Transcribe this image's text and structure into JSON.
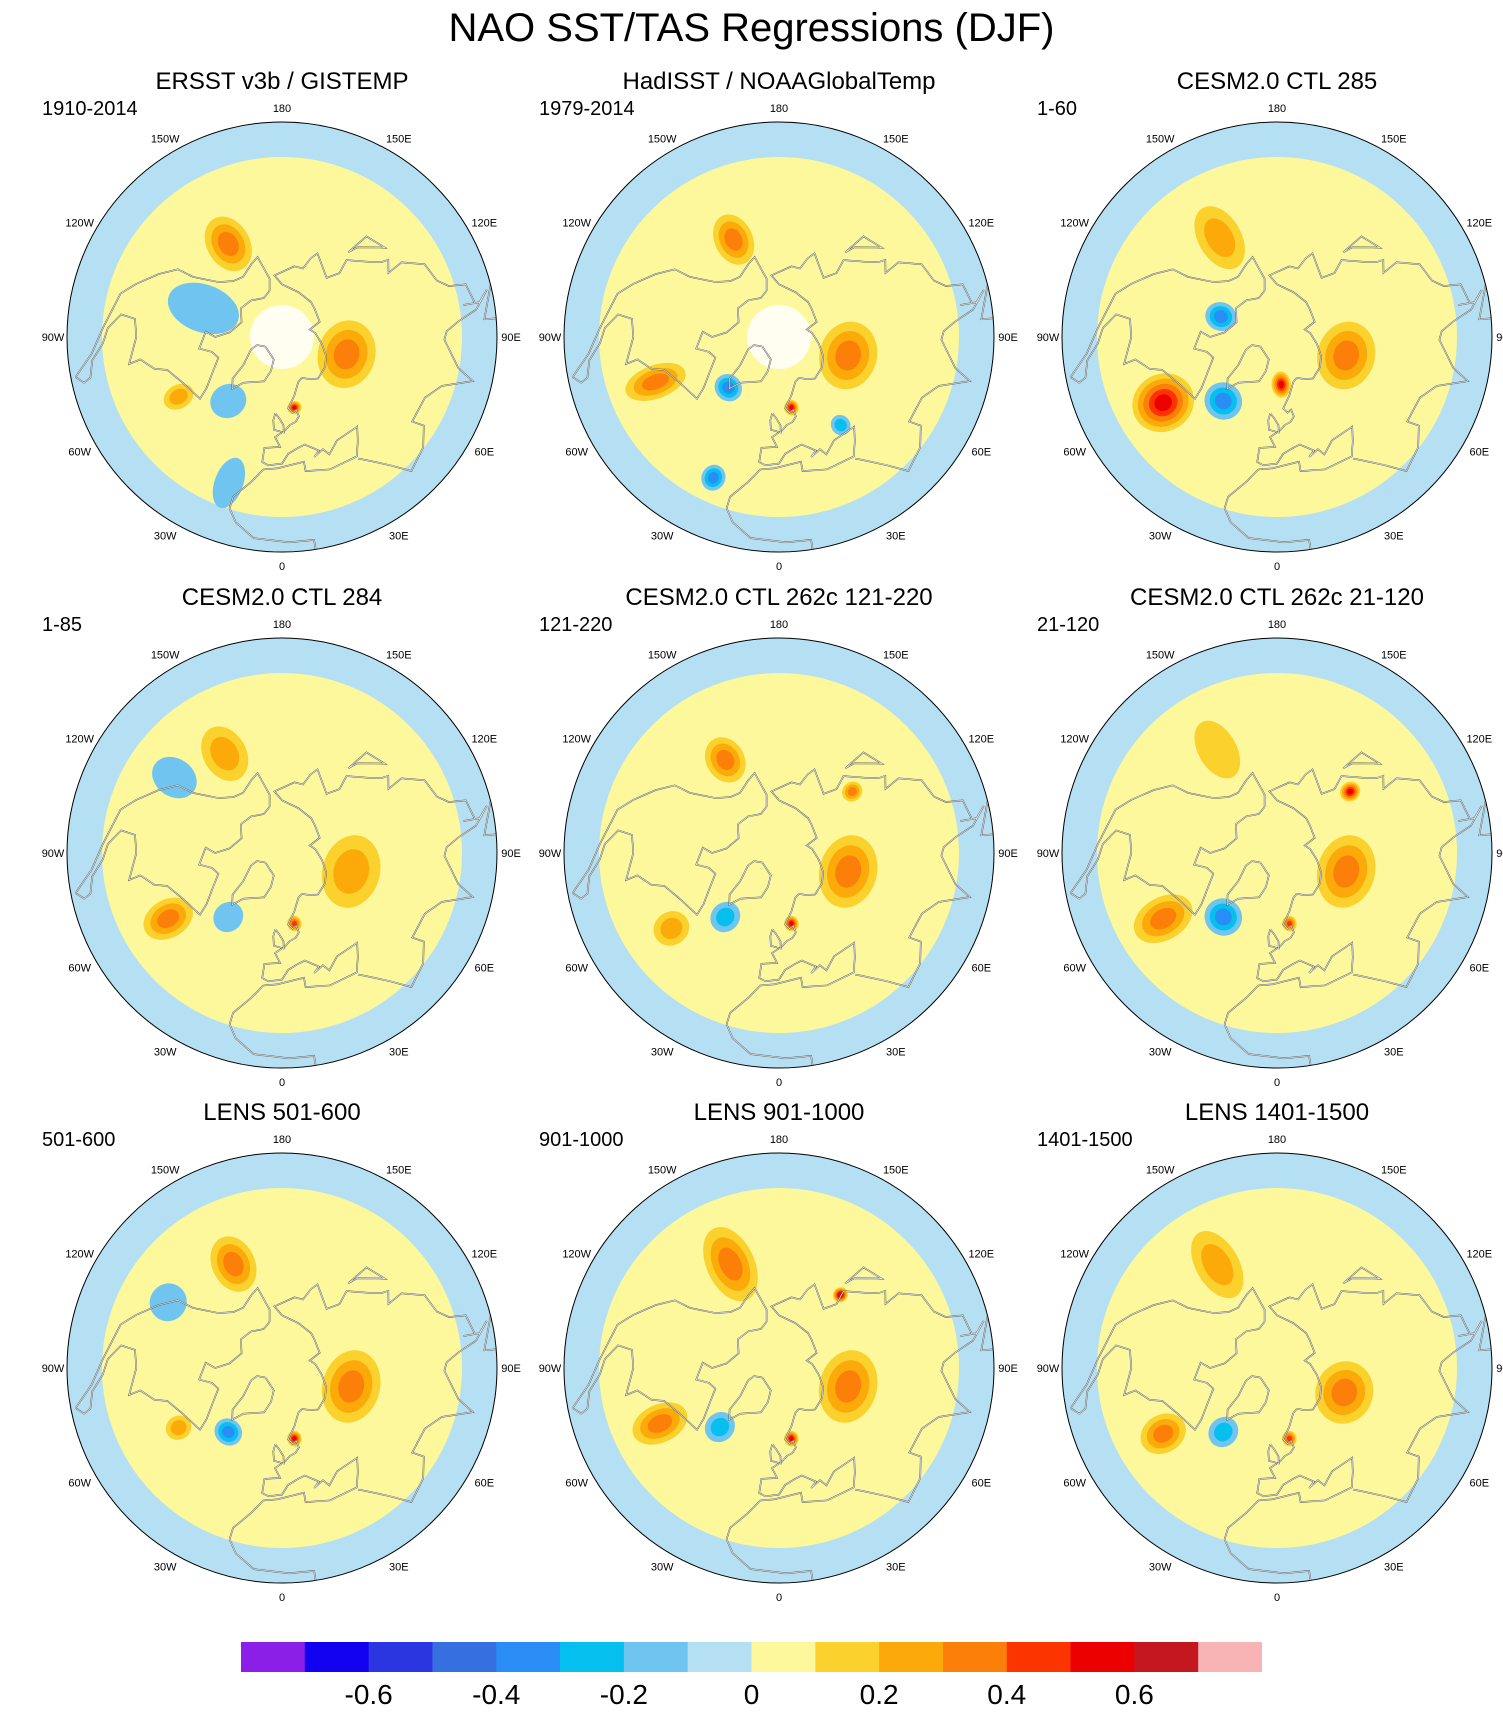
{
  "title": "NAO SST/TAS Regressions (DJF)",
  "longitude_labels": [
    "180",
    "150E",
    "120E",
    "90E",
    "60E",
    "30E",
    "0",
    "30W",
    "60W",
    "90W",
    "120W",
    "150W"
  ],
  "panels": [
    {
      "title": "ERSST v3b / GISTEMP",
      "period": "1910-2014",
      "partial_coverage": true,
      "blobs": [
        {
          "lat": 45,
          "lon": -150,
          "a": 22,
          "b": 9,
          "rot": 0,
          "v": 0.3
        },
        {
          "lat": 62,
          "lon": 75,
          "a": 26,
          "b": 12,
          "rot": 90,
          "v": 0.25
        },
        {
          "lat": 55,
          "lon": -40,
          "a": 14,
          "b": 7,
          "rot": 20,
          "v": -0.15
        },
        {
          "lat": 40,
          "lon": -60,
          "a": 12,
          "b": 5,
          "rot": 0,
          "v": 0.2
        },
        {
          "lat": 60,
          "lon": 10,
          "a": 5,
          "b": 3,
          "rot": 0,
          "v": 0.45
        },
        {
          "lat": 25,
          "lon": -20,
          "a": 20,
          "b": 6,
          "rot": 0,
          "v": -0.12
        },
        {
          "lat": 55,
          "lon": -110,
          "a": 28,
          "b": 10,
          "rot": 0,
          "v": -0.1
        }
      ]
    },
    {
      "title": "HadISST / NOAAGlobalTemp",
      "period": "1979-2014",
      "partial_coverage": true,
      "blobs": [
        {
          "lat": 45,
          "lon": -155,
          "a": 20,
          "b": 8,
          "rot": 0,
          "v": 0.3
        },
        {
          "lat": 60,
          "lon": 75,
          "a": 26,
          "b": 12,
          "rot": 90,
          "v": 0.3
        },
        {
          "lat": 35,
          "lon": -70,
          "a": 24,
          "b": 7,
          "rot": 0,
          "v": 0.3
        },
        {
          "lat": 60,
          "lon": -45,
          "a": 10,
          "b": 6,
          "rot": 0,
          "v": -0.25
        },
        {
          "lat": 60,
          "lon": 10,
          "a": 6,
          "b": 3,
          "rot": 0,
          "v": 0.5
        },
        {
          "lat": 25,
          "lon": -25,
          "a": 10,
          "b": 5,
          "rot": 0,
          "v": -0.3
        },
        {
          "lat": 45,
          "lon": 35,
          "a": 8,
          "b": 4,
          "rot": 0,
          "v": -0.2
        }
      ]
    },
    {
      "title": "CESM2.0 CTL 285",
      "period": "1-60",
      "partial_coverage": false,
      "blobs": [
        {
          "lat": 42,
          "lon": -150,
          "a": 26,
          "b": 9,
          "rot": 0,
          "v": 0.2
        },
        {
          "lat": 60,
          "lon": 75,
          "a": 26,
          "b": 12,
          "rot": 90,
          "v": 0.3
        },
        {
          "lat": 35,
          "lon": -60,
          "a": 24,
          "b": 12,
          "rot": 0,
          "v": 0.45
        },
        {
          "lat": 55,
          "lon": -40,
          "a": 14,
          "b": 8,
          "rot": 0,
          "v": -0.35
        },
        {
          "lat": 70,
          "lon": 5,
          "a": 10,
          "b": 4,
          "rot": 0,
          "v": 0.45
        },
        {
          "lat": 65,
          "lon": -110,
          "a": 12,
          "b": 6,
          "rot": 0,
          "v": -0.25
        }
      ]
    },
    {
      "title": "CESM2.0 CTL 284",
      "period": "1-85",
      "partial_coverage": false,
      "blobs": [
        {
          "lat": 42,
          "lon": -150,
          "a": 22,
          "b": 9,
          "rot": 0,
          "v": 0.2
        },
        {
          "lat": 60,
          "lon": 75,
          "a": 28,
          "b": 12,
          "rot": 90,
          "v": 0.22
        },
        {
          "lat": 35,
          "lon": -60,
          "a": 20,
          "b": 8,
          "rot": 0,
          "v": 0.28
        },
        {
          "lat": 55,
          "lon": -40,
          "a": 12,
          "b": 6,
          "rot": 0,
          "v": -0.15
        },
        {
          "lat": 60,
          "lon": 10,
          "a": 6,
          "b": 3,
          "rot": 0,
          "v": 0.4
        },
        {
          "lat": 35,
          "lon": -125,
          "a": 18,
          "b": 8,
          "rot": 0,
          "v": -0.15
        }
      ]
    },
    {
      "title": "CESM2.0 CTL 262c 121-220",
      "period": "121-220",
      "partial_coverage": false,
      "blobs": [
        {
          "lat": 45,
          "lon": -150,
          "a": 18,
          "b": 8,
          "rot": 0,
          "v": 0.25
        },
        {
          "lat": 60,
          "lon": 75,
          "a": 28,
          "b": 12,
          "rot": 90,
          "v": 0.25
        },
        {
          "lat": 35,
          "lon": -55,
          "a": 14,
          "b": 7,
          "rot": 0,
          "v": 0.2
        },
        {
          "lat": 55,
          "lon": -40,
          "a": 12,
          "b": 6,
          "rot": 0,
          "v": -0.18
        },
        {
          "lat": 60,
          "lon": 10,
          "a": 6,
          "b": 3,
          "rot": 0,
          "v": 0.45
        },
        {
          "lat": 50,
          "lon": 130,
          "a": 8,
          "b": 4,
          "rot": 0,
          "v": 0.35
        }
      ]
    },
    {
      "title": "CESM2.0 CTL 262c 21-120",
      "period": "21-120",
      "partial_coverage": false,
      "blobs": [
        {
          "lat": 40,
          "lon": -150,
          "a": 24,
          "b": 8,
          "rot": 0,
          "v": 0.15
        },
        {
          "lat": 60,
          "lon": 75,
          "a": 28,
          "b": 12,
          "rot": 90,
          "v": 0.25
        },
        {
          "lat": 35,
          "lon": -60,
          "a": 24,
          "b": 9,
          "rot": 0,
          "v": 0.3
        },
        {
          "lat": 55,
          "lon": -40,
          "a": 14,
          "b": 8,
          "rot": 0,
          "v": -0.3
        },
        {
          "lat": 60,
          "lon": 10,
          "a": 6,
          "b": 3,
          "rot": 0,
          "v": 0.4
        },
        {
          "lat": 50,
          "lon": 130,
          "a": 8,
          "b": 4,
          "rot": 0,
          "v": 0.45
        }
      ]
    },
    {
      "title": "LENS 501-600",
      "period": "501-600",
      "partial_coverage": false,
      "blobs": [
        {
          "lat": 42,
          "lon": -155,
          "a": 22,
          "b": 9,
          "rot": 0,
          "v": 0.25
        },
        {
          "lat": 60,
          "lon": 75,
          "a": 28,
          "b": 12,
          "rot": 90,
          "v": 0.25
        },
        {
          "lat": 40,
          "lon": -60,
          "a": 10,
          "b": 5,
          "rot": 0,
          "v": 0.2
        },
        {
          "lat": 55,
          "lon": -40,
          "a": 10,
          "b": 6,
          "rot": 0,
          "v": -0.3
        },
        {
          "lat": 60,
          "lon": 10,
          "a": 6,
          "b": 3,
          "rot": 0,
          "v": 0.45
        },
        {
          "lat": 35,
          "lon": -120,
          "a": 14,
          "b": 8,
          "rot": 0,
          "v": -0.15
        }
      ]
    },
    {
      "title": "LENS 901-1000",
      "period": "901-1000",
      "partial_coverage": false,
      "blobs": [
        {
          "lat": 42,
          "lon": -155,
          "a": 30,
          "b": 10,
          "rot": 0,
          "v": 0.35
        },
        {
          "lat": 60,
          "lon": 75,
          "a": 28,
          "b": 12,
          "rot": 90,
          "v": 0.3
        },
        {
          "lat": 35,
          "lon": -65,
          "a": 22,
          "b": 8,
          "rot": 0,
          "v": 0.25
        },
        {
          "lat": 55,
          "lon": -45,
          "a": 12,
          "b": 6,
          "rot": 0,
          "v": -0.2
        },
        {
          "lat": 60,
          "lon": 10,
          "a": 6,
          "b": 3,
          "rot": 0,
          "v": 0.45
        },
        {
          "lat": 50,
          "lon": 140,
          "a": 6,
          "b": 3,
          "rot": 0,
          "v": 0.55
        }
      ]
    },
    {
      "title": "LENS 1401-1500",
      "period": "1401-1500",
      "partial_coverage": false,
      "blobs": [
        {
          "lat": 40,
          "lon": -150,
          "a": 28,
          "b": 9,
          "rot": 0,
          "v": 0.2
        },
        {
          "lat": 60,
          "lon": 70,
          "a": 24,
          "b": 12,
          "rot": 90,
          "v": 0.3
        },
        {
          "lat": 35,
          "lon": -60,
          "a": 18,
          "b": 8,
          "rot": 0,
          "v": 0.25
        },
        {
          "lat": 55,
          "lon": -40,
          "a": 12,
          "b": 6,
          "rot": 0,
          "v": -0.2
        },
        {
          "lat": 60,
          "lon": 10,
          "a": 6,
          "b": 3,
          "rot": 0,
          "v": 0.4
        }
      ]
    }
  ],
  "colorbar": {
    "colors": [
      "#8b1fe8",
      "#1200f0",
      "#2b36e0",
      "#356fe0",
      "#2a8cf5",
      "#05bfef",
      "#70c5f0",
      "#b5dff2",
      "#fdf89c",
      "#fbd12d",
      "#fbaa0a",
      "#fb7f08",
      "#fb3400",
      "#ec0000",
      "#c41820",
      "#f8b4b4"
    ],
    "ticks": [
      {
        "label": "-0.6",
        "value": -0.6
      },
      {
        "label": "-0.4",
        "value": -0.4
      },
      {
        "label": "-0.2",
        "value": -0.2
      },
      {
        "label": "0",
        "value": 0
      },
      {
        "label": "0.2",
        "value": 0.2
      },
      {
        "label": "0.4",
        "value": 0.4
      },
      {
        "label": "0.6",
        "value": 0.6
      }
    ]
  }
}
